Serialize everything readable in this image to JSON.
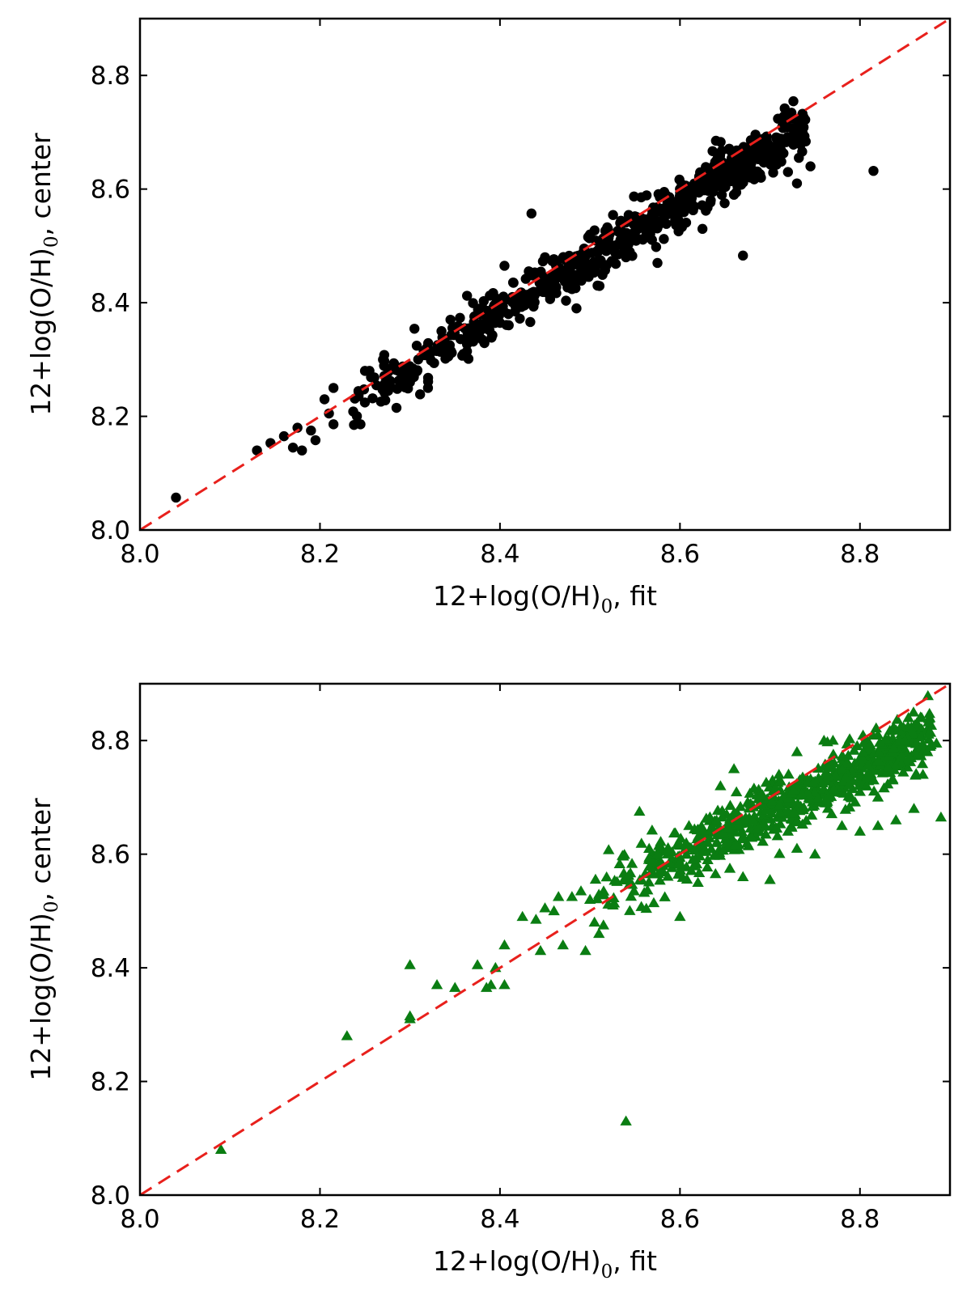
{
  "chart_data": [
    {
      "type": "scatter",
      "title": "",
      "xlabel": {
        "prefix": "12+log(O/H)",
        "sub": "0",
        "suffix": ", fit"
      },
      "ylabel": {
        "prefix": "12+log(O/H)",
        "sub": "0",
        "suffix": ", center"
      },
      "xlim": [
        8.0,
        8.9
      ],
      "ylim": [
        8.0,
        8.9
      ],
      "xticks": [
        "8.0",
        "8.2",
        "8.4",
        "8.6",
        "8.8"
      ],
      "yticks": [
        "8.0",
        "8.2",
        "8.4",
        "8.6",
        "8.8"
      ],
      "grid": false,
      "reference_line": {
        "from": [
          8.0,
          8.0
        ],
        "to": [
          8.9,
          8.9
        ],
        "style": "dashed",
        "color": "#e8201c"
      },
      "series": [
        {
          "name": "points",
          "marker": "circle",
          "color": "#000000",
          "cloud": {
            "x_range": [
              8.22,
              8.74
            ],
            "slope": 0.98,
            "intercept_offset": -0.01,
            "scatter": 0.022,
            "count": 700,
            "seed": 17
          },
          "points": [
            [
              8.04,
              8.057
            ],
            [
              8.13,
              8.14
            ],
            [
              8.145,
              8.153
            ],
            [
              8.16,
              8.165
            ],
            [
              8.17,
              8.145
            ],
            [
              8.175,
              8.18
            ],
            [
              8.18,
              8.14
            ],
            [
              8.19,
              8.175
            ],
            [
              8.195,
              8.158
            ],
            [
              8.205,
              8.23
            ],
            [
              8.21,
              8.205
            ],
            [
              8.215,
              8.25
            ],
            [
              8.215,
              8.186
            ],
            [
              8.245,
              8.186
            ],
            [
              8.25,
              8.28
            ],
            [
              8.255,
              8.28
            ],
            [
              8.27,
              8.3
            ],
            [
              8.285,
              8.215
            ],
            [
              8.3,
              8.26
            ],
            [
              8.32,
              8.25
            ],
            [
              8.335,
              8.35
            ],
            [
              8.345,
              8.37
            ],
            [
              8.365,
              8.34
            ],
            [
              8.38,
              8.38
            ],
            [
              8.405,
              8.465
            ],
            [
              8.435,
              8.557
            ],
            [
              8.45,
              8.48
            ],
            [
              8.485,
              8.39
            ],
            [
              8.5,
              8.52
            ],
            [
              8.52,
              8.53
            ],
            [
              8.54,
              8.48
            ],
            [
              8.575,
              8.47
            ],
            [
              8.6,
              8.6
            ],
            [
              8.625,
              8.53
            ],
            [
              8.64,
              8.685
            ],
            [
              8.67,
              8.483
            ],
            [
              8.66,
              8.59
            ],
            [
              8.7,
              8.67
            ],
            [
              8.72,
              8.63
            ],
            [
              8.73,
              8.61
            ],
            [
              8.745,
              8.64
            ],
            [
              8.815,
              8.632
            ],
            [
              8.605,
              8.59
            ],
            [
              8.57,
              8.56
            ],
            [
              8.69,
              8.62
            ]
          ]
        },
        {
          "name": "points",
          "marker": "triangle",
          "color": "#0a7d12",
          "cloud": {
            "x_range": [
              8.5,
              8.88
            ],
            "slope": 0.76,
            "intercept_offset": -0.02,
            "scatter": 0.028,
            "count": 700,
            "seed": 91
          },
          "points": [
            [
              8.09,
              8.08
            ],
            [
              8.23,
              8.28
            ],
            [
              8.3,
              8.31
            ],
            [
              8.3,
              8.405
            ],
            [
              8.3,
              8.315
            ],
            [
              8.33,
              8.37
            ],
            [
              8.35,
              8.365
            ],
            [
              8.375,
              8.405
            ],
            [
              8.385,
              8.365
            ],
            [
              8.39,
              8.37
            ],
            [
              8.395,
              8.4
            ],
            [
              8.405,
              8.44
            ],
            [
              8.405,
              8.37
            ],
            [
              8.425,
              8.49
            ],
            [
              8.44,
              8.485
            ],
            [
              8.445,
              8.43
            ],
            [
              8.45,
              8.505
            ],
            [
              8.46,
              8.5
            ],
            [
              8.465,
              8.525
            ],
            [
              8.47,
              8.44
            ],
            [
              8.48,
              8.525
            ],
            [
              8.49,
              8.535
            ],
            [
              8.495,
              8.43
            ],
            [
              8.5,
              8.52
            ],
            [
              8.505,
              8.48
            ],
            [
              8.51,
              8.46
            ],
            [
              8.515,
              8.475
            ],
            [
              8.54,
              8.13
            ],
            [
              8.555,
              8.675
            ],
            [
              8.575,
              8.6
            ],
            [
              8.6,
              8.49
            ],
            [
              8.62,
              8.55
            ],
            [
              8.645,
              8.72
            ],
            [
              8.67,
              8.56
            ],
            [
              8.7,
              8.555
            ],
            [
              8.73,
              8.61
            ],
            [
              8.75,
              8.6
            ],
            [
              8.78,
              8.65
            ],
            [
              8.8,
              8.64
            ],
            [
              8.81,
              8.74
            ],
            [
              8.82,
              8.65
            ],
            [
              8.84,
              8.66
            ],
            [
              8.855,
              8.77
            ],
            [
              8.86,
              8.68
            ],
            [
              8.875,
              8.78
            ],
            [
              8.885,
              8.795
            ],
            [
              8.89,
              8.665
            ],
            [
              8.87,
              8.74
            ],
            [
              8.85,
              8.8
            ],
            [
              8.82,
              8.81
            ],
            [
              8.77,
              8.8
            ],
            [
              8.76,
              8.8
            ],
            [
              8.73,
              8.78
            ],
            [
              8.71,
              8.74
            ],
            [
              8.66,
              8.75
            ],
            [
              8.82,
              8.7
            ],
            [
              8.8,
              8.71
            ],
            [
              8.72,
              8.64
            ],
            [
              8.66,
              8.66
            ],
            [
              8.63,
              8.62
            ]
          ]
        }
      ]
    }
  ]
}
